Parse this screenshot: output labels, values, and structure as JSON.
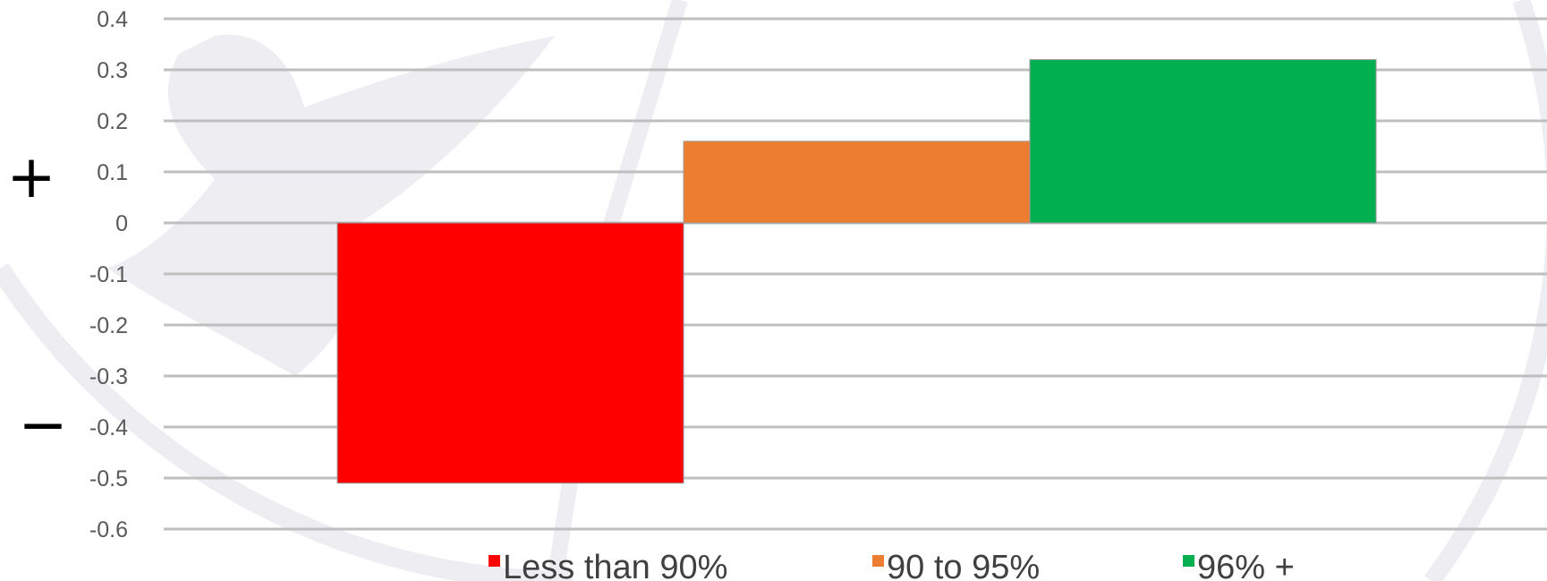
{
  "chart_data": {
    "type": "bar",
    "categories": [
      "Less than 90%",
      "90 to 95%",
      "96% +"
    ],
    "values": [
      -0.51,
      0.16,
      0.32
    ],
    "colors": [
      "#ff0000",
      "#ed7d31",
      "#00b050"
    ],
    "ylim": [
      -0.6,
      0.4
    ],
    "yticks": [
      0.4,
      0.3,
      0.2,
      0.1,
      0,
      -0.1,
      -0.2,
      -0.3,
      -0.4,
      -0.5,
      -0.6
    ],
    "ytick_labels": [
      "0.4",
      "0.3",
      "0.2",
      "0.1",
      "0",
      "-0.1",
      "-0.2",
      "-0.3",
      "-0.4",
      "-0.5",
      "-0.6"
    ],
    "grid": true,
    "legend": {
      "placement": "bottom",
      "entries": [
        {
          "label": "Less than 90%",
          "color": "#ff0000"
        },
        {
          "label": "90 to 95%",
          "color": "#ed7d31"
        },
        {
          "label": "96% +",
          "color": "#00b050"
        }
      ]
    },
    "sign_labels": {
      "positive": "+",
      "negative": "−"
    },
    "watermark": "eagle crest"
  }
}
